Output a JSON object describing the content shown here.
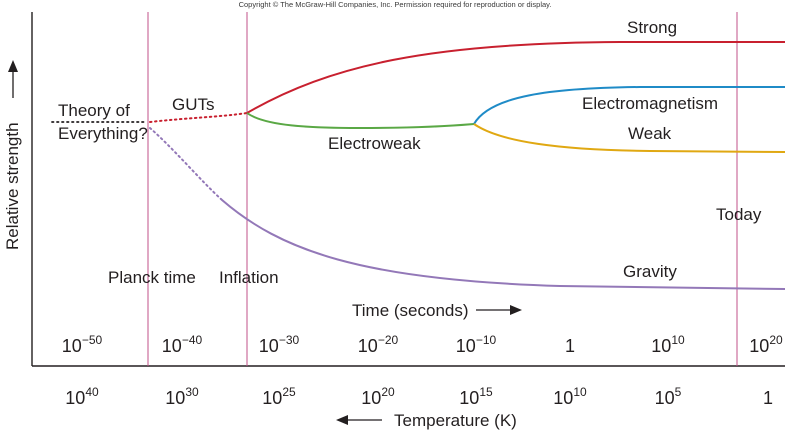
{
  "copyright": "Copyright © The McGraw-Hill Companies, Inc. Permission required for reproduction or display.",
  "y_axis_label": "Relative strength",
  "x_axis_label": "Time (seconds)",
  "temperature_axis_label": "Temperature (K)",
  "forces": {
    "strong": "Strong",
    "electromagnetism": "Electromagnetism",
    "weak": "Weak",
    "electroweak": "Electroweak",
    "guts": "GUTs",
    "gravity": "Gravity",
    "toe_line1": "Theory of",
    "toe_line2": "Everything?"
  },
  "events": {
    "planck": "Planck time",
    "inflation": "Inflation",
    "today": "Today"
  },
  "time_ticks": [
    {
      "base": "10",
      "exp": "−50"
    },
    {
      "base": "10",
      "exp": "−40"
    },
    {
      "base": "10",
      "exp": "−30"
    },
    {
      "base": "10",
      "exp": "−20"
    },
    {
      "base": "10",
      "exp": "−10"
    },
    {
      "base": "1",
      "exp": ""
    },
    {
      "base": "10",
      "exp": "10"
    },
    {
      "base": "10",
      "exp": "20"
    }
  ],
  "temperature_ticks": [
    {
      "base": "10",
      "exp": "40"
    },
    {
      "base": "10",
      "exp": "30"
    },
    {
      "base": "10",
      "exp": "25"
    },
    {
      "base": "10",
      "exp": "20"
    },
    {
      "base": "10",
      "exp": "15"
    },
    {
      "base": "10",
      "exp": "10"
    },
    {
      "base": "10",
      "exp": "5"
    },
    {
      "base": "1",
      "exp": ""
    }
  ],
  "colors": {
    "strong": "#c8202f",
    "electromagnetism": "#1f8bc7",
    "weak": "#e0a812",
    "electroweak": "#5aa845",
    "gravity": "#9378b8",
    "event_line": "#c0508a",
    "axis": "#231f20"
  }
}
